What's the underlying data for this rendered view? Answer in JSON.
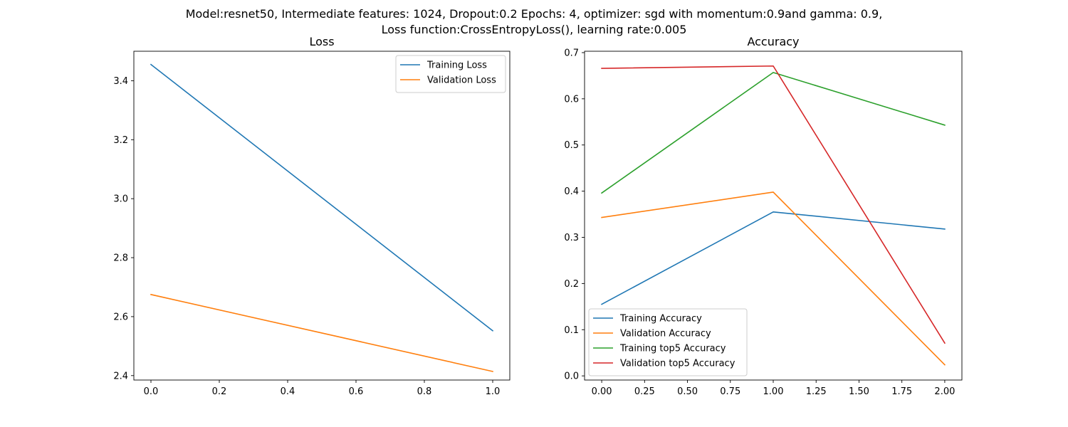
{
  "figure": {
    "title_line1": "Model:resnet50, Intermediate features: 1024, Dropout:0.2 Epochs: 4, optimizer: sgd with momentum:0.9and gamma: 0.9,",
    "title_line2": "Loss function:CrossEntropyLoss(), learning rate:0.005"
  },
  "chart_data": [
    {
      "type": "line",
      "title": "Loss",
      "xlabel": "",
      "ylabel": "",
      "xlim": [
        -0.05,
        1.05
      ],
      "ylim": [
        2.385,
        3.5
      ],
      "xticks": [
        0.0,
        0.2,
        0.4,
        0.6,
        0.8,
        1.0
      ],
      "xtick_labels": [
        "0.0",
        "0.2",
        "0.4",
        "0.6",
        "0.8",
        "1.0"
      ],
      "yticks": [
        2.4,
        2.6,
        2.8,
        3.0,
        3.2,
        3.4
      ],
      "ytick_labels": [
        "2.4",
        "2.6",
        "2.8",
        "3.0",
        "3.2",
        "3.4"
      ],
      "grid": false,
      "legend_position": "upper right",
      "series": [
        {
          "name": "Training Loss",
          "color": "#1f77b4",
          "x": [
            0,
            1
          ],
          "y": [
            3.455,
            2.552
          ]
        },
        {
          "name": "Validation Loss",
          "color": "#ff7f0e",
          "x": [
            0,
            1
          ],
          "y": [
            2.675,
            2.414
          ]
        }
      ]
    },
    {
      "type": "line",
      "title": "Accuracy",
      "xlabel": "",
      "ylabel": "",
      "xlim": [
        -0.1,
        2.1
      ],
      "ylim": [
        -0.009,
        0.703
      ],
      "xticks": [
        0.0,
        0.25,
        0.5,
        0.75,
        1.0,
        1.25,
        1.5,
        1.75,
        2.0
      ],
      "xtick_labels": [
        "0.00",
        "0.25",
        "0.50",
        "0.75",
        "1.00",
        "1.25",
        "1.50",
        "1.75",
        "2.00"
      ],
      "yticks": [
        0.0,
        0.1,
        0.2,
        0.3,
        0.4,
        0.5,
        0.6,
        0.7
      ],
      "ytick_labels": [
        "0.0",
        "0.1",
        "0.2",
        "0.3",
        "0.4",
        "0.5",
        "0.6",
        "0.7"
      ],
      "grid": false,
      "legend_position": "lower left",
      "series": [
        {
          "name": "Training Accuracy",
          "color": "#1f77b4",
          "x": [
            0,
            1,
            2
          ],
          "y": [
            0.155,
            0.355,
            0.318
          ]
        },
        {
          "name": "Validation Accuracy",
          "color": "#ff7f0e",
          "x": [
            0,
            1,
            2
          ],
          "y": [
            0.343,
            0.398,
            0.024
          ]
        },
        {
          "name": "Training top5 Accuracy",
          "color": "#2ca02c",
          "x": [
            0,
            1,
            2
          ],
          "y": [
            0.396,
            0.657,
            0.543
          ]
        },
        {
          "name": "Validation top5 Accuracy",
          "color": "#d62728",
          "x": [
            0,
            1,
            2
          ],
          "y": [
            0.666,
            0.671,
            0.071
          ]
        }
      ]
    }
  ]
}
